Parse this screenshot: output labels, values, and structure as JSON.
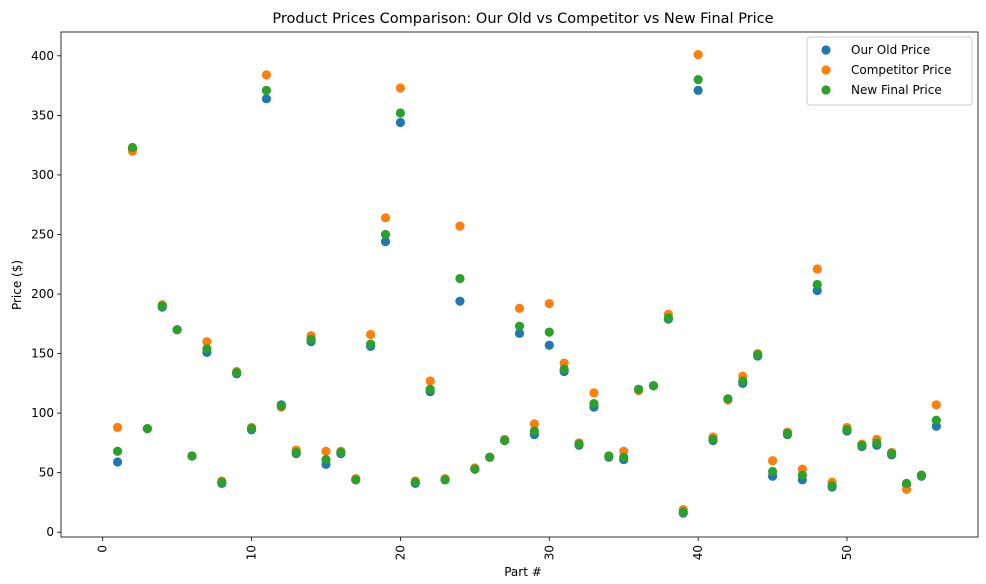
{
  "chart_data": {
    "type": "scatter",
    "title": "Product Prices Comparison: Our Old vs Competitor vs New Final Price",
    "xlabel": "Part #",
    "ylabel": "Price ($)",
    "xlim": [
      -2.8,
      58.8
    ],
    "ylim": [
      -4,
      420
    ],
    "x_ticks": [
      0,
      10,
      20,
      30,
      40,
      50
    ],
    "y_ticks": [
      0,
      50,
      100,
      150,
      200,
      250,
      300,
      350,
      400
    ],
    "grid": false,
    "legend_position": "top-right",
    "x": [
      1,
      2,
      3,
      4,
      5,
      6,
      7,
      8,
      9,
      10,
      11,
      12,
      13,
      14,
      15,
      16,
      17,
      18,
      19,
      20,
      21,
      22,
      23,
      24,
      25,
      26,
      27,
      28,
      29,
      30,
      31,
      32,
      33,
      34,
      35,
      36,
      37,
      38,
      39,
      40,
      41,
      42,
      43,
      44,
      45,
      46,
      47,
      48,
      49,
      50,
      51,
      52,
      53,
      54,
      55,
      56
    ],
    "series": [
      {
        "name": "Our Old Price",
        "color": "#1f77b4",
        "values": [
          59,
          322,
          87,
          189,
          170,
          64,
          151,
          41,
          133,
          86,
          364,
          107,
          66,
          160,
          57,
          66,
          44,
          156,
          244,
          344,
          41,
          118,
          44,
          194,
          53,
          63,
          77,
          167,
          82,
          157,
          135,
          73,
          105,
          63,
          61,
          120,
          123,
          179,
          16,
          371,
          77,
          112,
          125,
          148,
          47,
          82,
          44,
          203,
          38,
          85,
          72,
          73,
          65,
          40,
          47,
          89
        ]
      },
      {
        "name": "Competitor Price",
        "color": "#ff7f0e",
        "values": [
          88,
          320,
          87,
          191,
          170,
          64,
          160,
          43,
          135,
          88,
          384,
          105,
          69,
          165,
          68,
          68,
          45,
          166,
          264,
          373,
          43,
          127,
          45,
          257,
          54,
          63,
          78,
          188,
          91,
          192,
          142,
          75,
          117,
          64,
          68,
          119,
          123,
          183,
          19,
          401,
          80,
          111,
          131,
          150,
          60,
          84,
          53,
          221,
          42,
          88,
          74,
          78,
          67,
          36,
          48,
          107
        ]
      },
      {
        "name": "New Final Price",
        "color": "#2ca02c",
        "values": [
          68,
          323,
          87,
          190,
          170,
          64,
          154,
          42,
          134,
          87,
          371,
          106,
          67,
          162,
          61,
          67,
          44,
          158,
          250,
          352,
          42,
          120,
          44,
          213,
          53,
          63,
          77,
          173,
          85,
          168,
          137,
          74,
          108,
          64,
          63,
          120,
          123,
          180,
          17,
          380,
          78,
          112,
          127,
          149,
          51,
          83,
          48,
          208,
          39,
          86,
          73,
          75,
          66,
          41,
          48,
          94
        ]
      }
    ]
  }
}
